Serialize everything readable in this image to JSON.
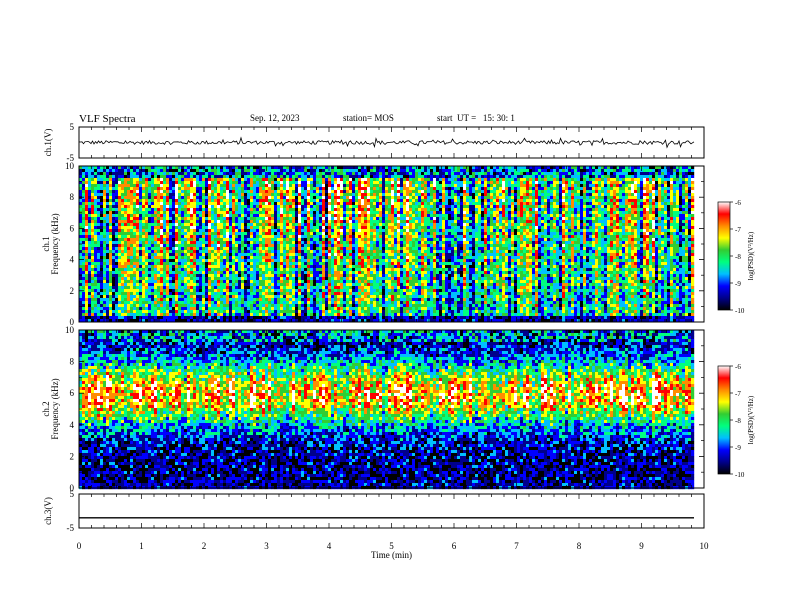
{
  "header": {
    "title": "VLF Spectra",
    "date": "Sep. 12, 2023",
    "station": "station= MOS",
    "start": "start  UT =   15: 30: 1"
  },
  "chart_data": [
    {
      "type": "line",
      "ylabel": "ch.1(V)",
      "ylim": [
        -5,
        5
      ],
      "y_ticks": [
        "5",
        "-5"
      ],
      "series": [
        {
          "values_range": [
            -1,
            1
          ]
        }
      ]
    },
    {
      "type": "heatmap",
      "ylabel_lines": [
        "ch.1",
        "Frequency (kHz)"
      ],
      "ylim": [
        0,
        10
      ],
      "y_ticks": [
        "0",
        "2",
        "4",
        "6",
        "8",
        "10"
      ],
      "xlim": [
        0,
        10
      ],
      "colorbar": {
        "label": "log(PSD)(V²/Hz)",
        "range": [
          -10,
          -6
        ],
        "ticks": [
          "-6",
          "-7",
          "-8",
          "-9",
          "-10"
        ],
        "colors": [
          "#000000",
          "#00008b",
          "#0000ff",
          "#00bfff",
          "#00ff7f",
          "#32cd32",
          "#ffff00",
          "#ff8c00",
          "#ff0000",
          "#ffffff"
        ]
      }
    },
    {
      "type": "heatmap",
      "ylabel_lines": [
        "ch.2",
        "Frequency (kHz)"
      ],
      "ylim": [
        0,
        10
      ],
      "y_ticks": [
        "0",
        "2",
        "4",
        "6",
        "8",
        "10"
      ],
      "xlim": [
        0,
        10
      ],
      "colorbar": {
        "label": "log(PSD)(V²/Hz)",
        "range": [
          -10,
          -6
        ],
        "ticks": [
          "-6",
          "-7",
          "-8",
          "-9",
          "-10"
        ],
        "colors": [
          "#000000",
          "#00008b",
          "#0000ff",
          "#00bfff",
          "#00ff7f",
          "#32cd32",
          "#ffff00",
          "#ff8c00",
          "#ff0000",
          "#ffffff"
        ]
      }
    },
    {
      "type": "line",
      "ylabel": "ch.3(V)",
      "ylim": [
        -5,
        5
      ],
      "y_ticks": [
        "5",
        "-5"
      ],
      "series": [
        {
          "constant": -2
        }
      ]
    }
  ],
  "xaxis": {
    "label": "Time (min)",
    "lim": [
      0,
      10
    ],
    "ticks": [
      "0",
      "1",
      "2",
      "3",
      "4",
      "5",
      "6",
      "7",
      "8",
      "9",
      "10"
    ],
    "data_end": 9.84
  }
}
